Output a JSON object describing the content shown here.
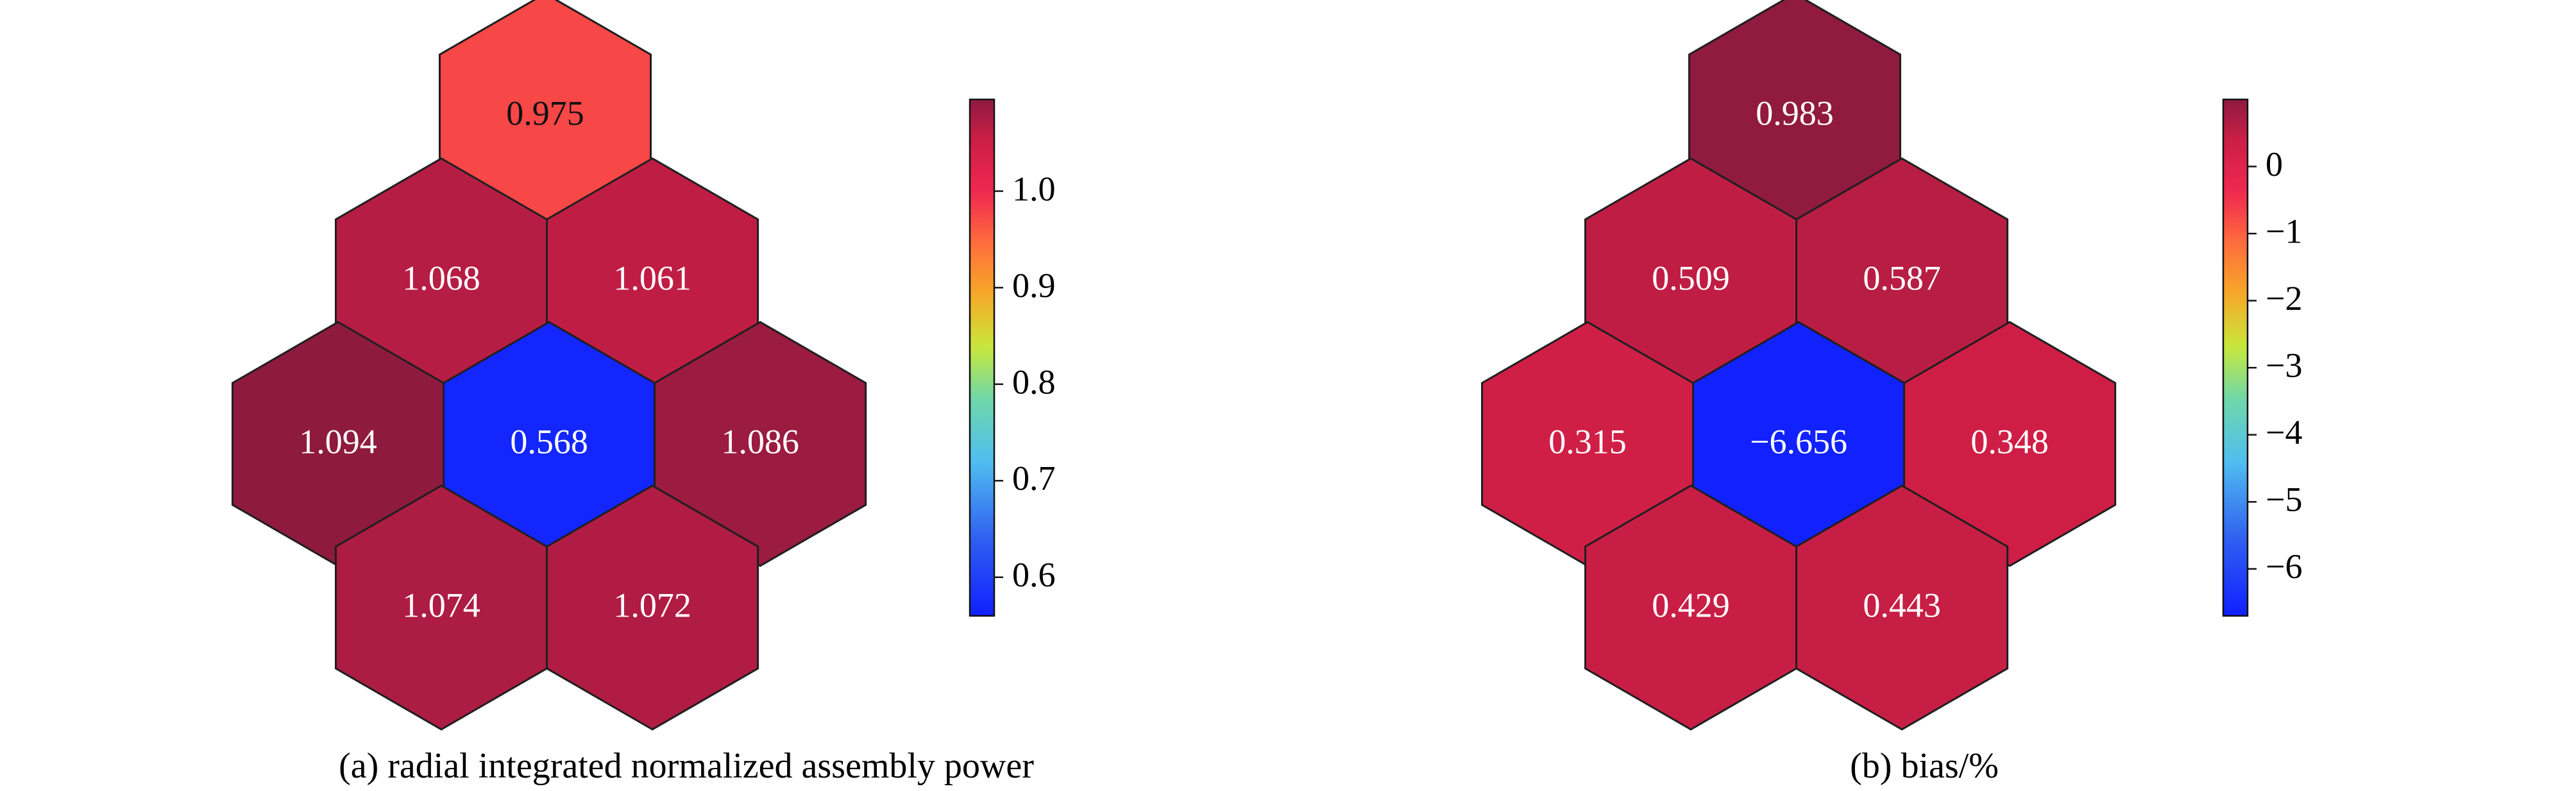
{
  "chart_data": [
    {
      "type": "heatmap",
      "layout": "hexagonal",
      "caption": "(a) radial integrated normalized assembly power",
      "colormap": "jet-like",
      "colorbar": {
        "range": [
          0.56,
          1.095
        ],
        "ticks": [
          "0.6",
          "0.7",
          "0.8",
          "0.9",
          "1.0"
        ],
        "tick_values": [
          0.6,
          0.7,
          0.8,
          0.9,
          1.0
        ]
      },
      "cells": [
        {
          "row": 0,
          "col": 0,
          "label": "0.975",
          "value": 0.975
        },
        {
          "row": 1,
          "col": 0,
          "label": "1.068",
          "value": 1.068
        },
        {
          "row": 1,
          "col": 1,
          "label": "1.061",
          "value": 1.061
        },
        {
          "row": 2,
          "col": 0,
          "label": "1.094",
          "value": 1.094
        },
        {
          "row": 2,
          "col": 1,
          "label": "0.568",
          "value": 0.568
        },
        {
          "row": 2,
          "col": 2,
          "label": "1.086",
          "value": 1.086
        },
        {
          "row": 3,
          "col": 0,
          "label": "1.074",
          "value": 1.074
        },
        {
          "row": 3,
          "col": 1,
          "label": "1.072",
          "value": 1.072
        }
      ]
    },
    {
      "type": "heatmap",
      "layout": "hexagonal",
      "caption": "(b) bias/%",
      "colormap": "jet-like",
      "colorbar": {
        "range": [
          -6.7,
          1.0
        ],
        "ticks": [
          "−6",
          "−5",
          "−4",
          "−3",
          "−2",
          "−1",
          "0"
        ],
        "tick_values": [
          -6,
          -5,
          -4,
          -3,
          -2,
          -1,
          0
        ]
      },
      "cells": [
        {
          "row": 0,
          "col": 0,
          "label": "0.983",
          "value": 0.983
        },
        {
          "row": 1,
          "col": 0,
          "label": "0.509",
          "value": 0.509
        },
        {
          "row": 1,
          "col": 1,
          "label": "0.587",
          "value": 0.587
        },
        {
          "row": 2,
          "col": 0,
          "label": "0.315",
          "value": 0.315
        },
        {
          "row": 2,
          "col": 1,
          "label": "−6.656",
          "value": -6.656
        },
        {
          "row": 2,
          "col": 2,
          "label": "0.348",
          "value": 0.348
        },
        {
          "row": 3,
          "col": 0,
          "label": "0.429",
          "value": 0.429
        },
        {
          "row": 3,
          "col": 1,
          "label": "0.443",
          "value": 0.443
        }
      ]
    }
  ],
  "colors": {
    "low": "#1030ff",
    "mid": "#d4e83a",
    "high": "#8e1a40",
    "frame": "#111111"
  }
}
